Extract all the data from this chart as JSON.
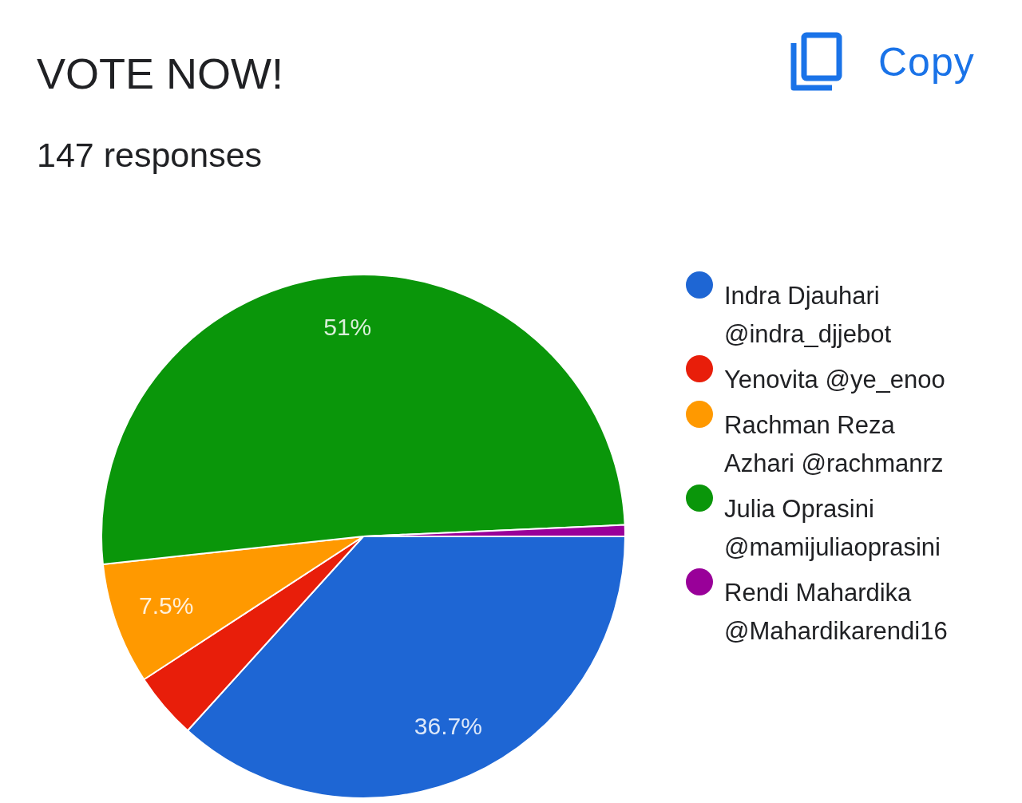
{
  "chart_data": {
    "type": "pie",
    "title": "VOTE NOW!",
    "subtitle": "147 responses",
    "categories": [
      "Indra Djauhari @indra_djjebot",
      "Yenovita @ye_enoo",
      "Rachman Reza Azhari @rachmanrz",
      "Julia Oprasini @mamijuliaoprasini",
      "Rendi Mahardika @Mahardikarendi16"
    ],
    "values": [
      36.7,
      4.1,
      7.5,
      51,
      0.7
    ],
    "colors": [
      "#1e66d4",
      "#e81e0a",
      "#ff9900",
      "#0a960a",
      "#990099"
    ],
    "value_labels": [
      "36.7%",
      null,
      "7.5%",
      "51%",
      null
    ],
    "legend": "right",
    "annotations": [
      "Copy"
    ]
  }
}
